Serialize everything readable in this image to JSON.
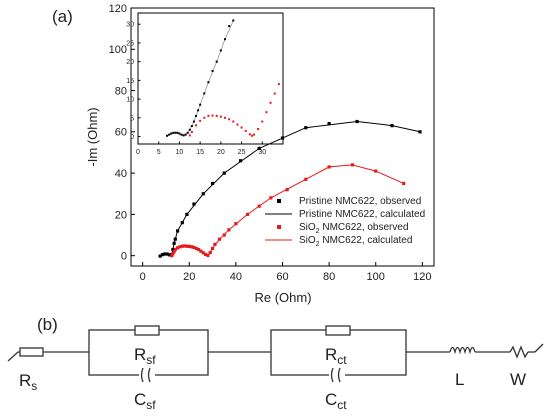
{
  "panel_labels": {
    "a": "(a)",
    "b": "(b)"
  },
  "chart_data": [
    {
      "type": "scatter",
      "xlabel": "Re (Ohm)",
      "ylabel": "-Im (Ohm)",
      "xlim": [
        -5,
        125
      ],
      "ylim": [
        -5,
        120
      ],
      "xticks": [
        0,
        20,
        40,
        60,
        80,
        100,
        120
      ],
      "yticks": [
        0,
        20,
        40,
        60,
        80,
        100,
        120
      ],
      "legend_position": "bottom-right",
      "series": [
        {
          "name": "Pristine NMC622, observed",
          "style": "markers",
          "color": "#000000",
          "x": [
            7.5,
            8.5,
            9.5,
            10.5,
            11.5,
            12.5,
            13,
            13.5,
            14,
            15,
            17,
            19,
            22,
            26,
            30,
            35,
            42,
            50,
            60,
            70,
            80,
            92,
            107,
            119
          ],
          "y": [
            -0.2,
            0.5,
            0.8,
            0.8,
            0.4,
            0.5,
            3,
            6,
            8,
            12,
            16,
            20,
            25,
            30,
            35,
            40,
            46,
            52,
            57,
            62,
            64,
            65,
            63,
            60
          ]
        },
        {
          "name": "Pristine NMC622, calculated",
          "style": "line",
          "color": "#000000",
          "x": [
            7.5,
            9.5,
            11.5,
            12.5,
            13.5,
            15,
            19,
            26,
            35,
            50,
            70,
            92,
            107,
            119
          ],
          "y": [
            -0.2,
            0.8,
            0.4,
            0.5,
            6,
            12,
            20,
            30,
            40,
            52,
            62,
            65,
            63,
            60
          ]
        },
        {
          "name": "SiO2 NMC622, observed",
          "style": "markers",
          "color": "#e8191a",
          "x": [
            12.5,
            13,
            13.5,
            14,
            15,
            16,
            17,
            18,
            19,
            20,
            21,
            22,
            23,
            24,
            25,
            26,
            27,
            28,
            29,
            30,
            31,
            33,
            35,
            37,
            40,
            45,
            50,
            55,
            62,
            70,
            80,
            90,
            100,
            112
          ],
          "y": [
            0,
            1,
            2,
            3,
            3.8,
            4.3,
            4.6,
            4.7,
            4.6,
            4.5,
            4.3,
            4,
            3.5,
            3,
            2.2,
            1.4,
            0.6,
            0.1,
            1.5,
            3.5,
            5.5,
            8,
            10,
            12.5,
            15.5,
            20,
            24,
            28,
            32,
            37,
            43,
            44,
            41,
            35
          ]
        },
        {
          "name": "SiO2 NMC622, calculated",
          "style": "line",
          "color": "#e8191a",
          "x": [
            12.5,
            14,
            16,
            18,
            20,
            22,
            24,
            26,
            28,
            30,
            33,
            37,
            45,
            55,
            70,
            80,
            90,
            100,
            112
          ],
          "y": [
            0,
            3,
            4.3,
            4.7,
            4.5,
            4,
            3,
            1.4,
            0.1,
            3.5,
            8,
            12.5,
            20,
            28,
            37,
            43,
            44,
            41,
            35
          ]
        }
      ],
      "legend_labels": [
        [
          "Pristine NMC622, observed"
        ],
        [
          "Pristine NMC622, calculated"
        ],
        [
          "SiO",
          "2",
          " NMC622, observed"
        ],
        [
          "SiO",
          "2",
          " NMC622, calculated"
        ]
      ]
    },
    {
      "type": "scatter",
      "role": "inset",
      "xlim": [
        0,
        35
      ],
      "ylim": [
        -2,
        33
      ],
      "xticks": [
        0,
        5,
        10,
        15,
        20,
        25,
        30
      ],
      "yticks": [
        0,
        5,
        10,
        15,
        20,
        25,
        30
      ],
      "series": [
        {
          "name": "Pristine NMC622, observed",
          "style": "markers",
          "color": "#000000",
          "x": [
            7,
            7.5,
            8,
            8.5,
            9,
            9.5,
            10,
            10.5,
            11,
            11.5,
            12,
            12.5,
            13,
            13.5,
            14,
            14.5,
            15,
            16,
            17,
            18,
            19,
            20,
            21,
            22,
            23
          ],
          "y": [
            0.2,
            0.5,
            0.8,
            1,
            1,
            1,
            0.8,
            0.5,
            0.3,
            0.5,
            1,
            1.8,
            2.8,
            4,
            5.5,
            7,
            8.5,
            11.5,
            14.5,
            17.5,
            20,
            23,
            26,
            29.5,
            31
          ]
        },
        {
          "name": "SiO2 NMC622, observed",
          "style": "markers",
          "color": "#e8191a",
          "x": [
            12.5,
            13,
            14,
            15,
            16,
            17,
            18,
            19,
            20,
            21,
            22,
            23,
            24,
            25,
            26,
            27,
            27.5,
            28,
            29,
            30,
            31,
            32,
            33,
            34
          ],
          "y": [
            0.3,
            1.2,
            3,
            4.2,
            5,
            5.5,
            5.6,
            5.5,
            5.3,
            5,
            4.6,
            4,
            3.2,
            2.4,
            1.5,
            0.6,
            0.2,
            0.5,
            2,
            4,
            6.5,
            9,
            11.5,
            14
          ]
        },
        {
          "name": "Pristine NMC622, calculated",
          "style": "line",
          "color": "#888888",
          "x": [
            7,
            9,
            11,
            12,
            13,
            14,
            15,
            17,
            19,
            21,
            23
          ],
          "y": [
            0.2,
            1,
            0.3,
            1,
            2.8,
            5.5,
            8.5,
            14.5,
            20,
            26,
            31
          ]
        }
      ]
    }
  ],
  "circuit": {
    "elements": [
      {
        "kind": "resistor",
        "label": "R",
        "sub": "s"
      },
      {
        "kind": "resistor",
        "label": "R",
        "sub": "sf"
      },
      {
        "kind": "capacitor",
        "label": "C",
        "sub": "sf"
      },
      {
        "kind": "resistor",
        "label": "R",
        "sub": "ct"
      },
      {
        "kind": "capacitor",
        "label": "C",
        "sub": "ct"
      },
      {
        "kind": "inductor",
        "label": "L",
        "sub": ""
      },
      {
        "kind": "warburg",
        "label": "W",
        "sub": ""
      }
    ]
  }
}
